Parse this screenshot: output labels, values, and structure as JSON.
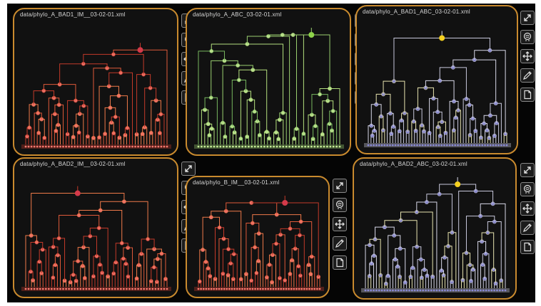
{
  "panels": [
    {
      "id": "p1",
      "title": "data/phylo_A_BAD1_IM__03-02-01.xml",
      "palette": [
        "#c33a2a",
        "#e05a3a",
        "#f07a4a"
      ],
      "node": "#ff7a70",
      "root": "#d43a4a",
      "leaves": 50,
      "seed": 3
    },
    {
      "id": "p2",
      "title": "data/phylo_A_ABC_03-02-01.xml",
      "palette": [
        "#9ad070",
        "#b4e07e",
        "#78b860"
      ],
      "node": "#c8f098",
      "root": "#8fd44a",
      "leaves": 46,
      "seed": 7
    },
    {
      "id": "p3",
      "title": "data/phylo_A_BAD1_ABC_03-02-01.xml",
      "palette": [
        "#d8d8e8",
        "#c8c8dc",
        "#e8e4b0"
      ],
      "node": "#8a8ad8",
      "root": "#f5d020",
      "leaves": 52,
      "seed": 11
    },
    {
      "id": "p4",
      "title": "data/phylo_A_BAD2_IM__03-02-01.xml",
      "palette": [
        "#c33a2a",
        "#e05a3a",
        "#f07a4a"
      ],
      "node": "#ff7a70",
      "root": "#d43a4a",
      "leaves": 50,
      "seed": 17
    },
    {
      "id": "p5",
      "title": "data/phylo_B_IM__03-02-01.xml",
      "palette": [
        "#c33a2a",
        "#e05a3a",
        "#f07a4a"
      ],
      "node": "#ff7a70",
      "root": "#d43a4a",
      "leaves": 48,
      "seed": 23
    },
    {
      "id": "p6",
      "title": "data/phylo_A_BAD2_ABC_03-02-01.xml",
      "palette": [
        "#d8d8e8",
        "#c8c8dc",
        "#e8e4b0"
      ],
      "node": "#8a8ad8",
      "root": "#f5d020",
      "leaves": 52,
      "seed": 31
    }
  ],
  "toolbar": [
    {
      "id": "expand",
      "icon": "expand-icon"
    },
    {
      "id": "brain",
      "icon": "brain-icon"
    },
    {
      "id": "move",
      "icon": "move-icon"
    },
    {
      "id": "edit",
      "icon": "pencil-icon"
    },
    {
      "id": "page",
      "icon": "page-icon"
    }
  ]
}
